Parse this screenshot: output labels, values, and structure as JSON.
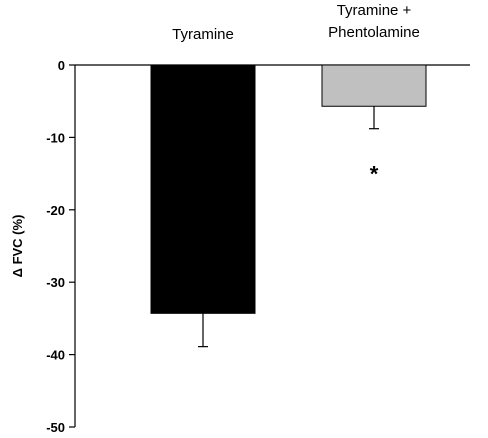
{
  "chart_data": {
    "type": "bar",
    "categories": [
      "Tyramine",
      "Tyramine + Phentolamine"
    ],
    "category_label_lines": [
      [
        "Tyramine"
      ],
      [
        "Tyramine +",
        "Phentolamine"
      ]
    ],
    "values": [
      -34.3,
      -5.7
    ],
    "errors": [
      4.6,
      3.1
    ],
    "bar_colors": [
      "#000000",
      "#c0c0c0"
    ],
    "ylabel": "Δ FVC (%)",
    "ylim": [
      -50,
      0
    ],
    "yticks": [
      0,
      -10,
      -20,
      -30,
      -40,
      -50
    ],
    "annotations": [
      {
        "text": "*",
        "category": "Tyramine + Phentolamine",
        "y": -15
      }
    ],
    "grid": false,
    "legend": "none"
  }
}
